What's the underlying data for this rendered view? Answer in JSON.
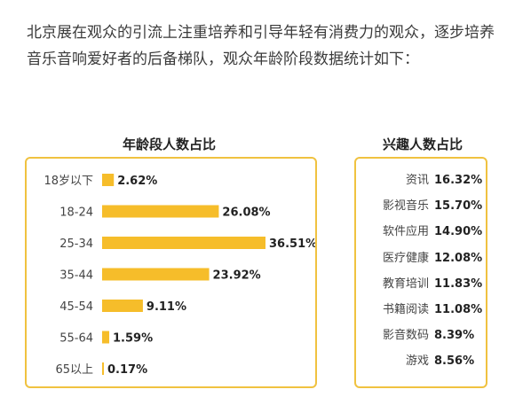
{
  "intro_text": "北京展在观众的引流上注重培养和引导年轻有消费力的观众，逐步培养音乐音响爱好者的后备梯队，观众年龄阶段数据统计如下：",
  "colors": {
    "bar": "#f6bd2a",
    "border": "#f0c240"
  },
  "chart_data": [
    {
      "type": "bar",
      "orientation": "horizontal",
      "title": "年龄段人数占比",
      "categories": [
        "18岁以下",
        "18-24",
        "25-34",
        "35-44",
        "45-54",
        "55-64",
        "65以上"
      ],
      "values": [
        2.62,
        26.08,
        36.51,
        23.92,
        9.11,
        1.59,
        0.17
      ],
      "value_labels": [
        "2.62%",
        "26.08%",
        "36.51%",
        "23.92%",
        "9.11%",
        "1.59%",
        "0.17%"
      ]
    },
    {
      "type": "table",
      "title": "兴趣人数占比",
      "categories": [
        "资讯",
        "影视音乐",
        "软件应用",
        "医疗健康",
        "教育培训",
        "书籍阅读",
        "影音数码",
        "游戏"
      ],
      "values": [
        16.32,
        15.7,
        14.9,
        12.08,
        11.83,
        11.08,
        8.39,
        8.56
      ],
      "value_labels": [
        "16.32%",
        "15.70%",
        "14.90%",
        "12.08%",
        "11.83%",
        "11.08%",
        "8.39%",
        "8.56%"
      ]
    }
  ]
}
